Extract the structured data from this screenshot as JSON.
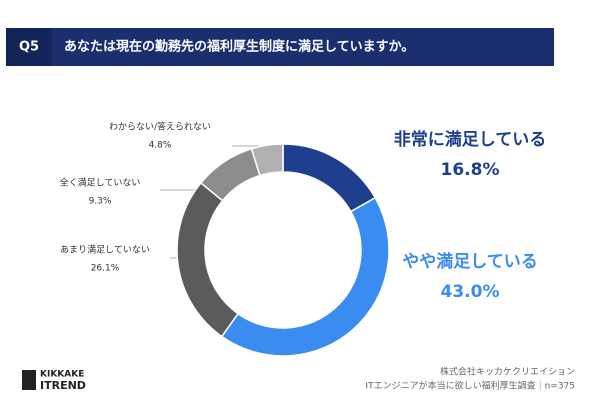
{
  "question": "Q5",
  "chart_data": {
    "type": "donut",
    "title": "あなたは現在の勤務先の福利厚生制度に満足していますか。",
    "categories": [
      "非常に満足している",
      "やや満足している",
      "あまり満足していない",
      "全く満足していない",
      "わからない/答えられない"
    ],
    "values": [
      16.8,
      43.0,
      26.1,
      9.3,
      4.8
    ],
    "value_labels": [
      "16.8%",
      "43.0%",
      "26.1%",
      "9.3%",
      "4.8%"
    ],
    "colors": [
      "#1e3f8e",
      "#3a8cf0",
      "#5b5b5b",
      "#8c8c8c",
      "#b0b0b0"
    ]
  },
  "footer": {
    "logo": [
      "KIKKAKE",
      "ITREND"
    ],
    "source": [
      "株式会社キッカケクリエイション",
      "ITエンジニアが本当に欲しい福利厚生調査｜n=375"
    ]
  }
}
